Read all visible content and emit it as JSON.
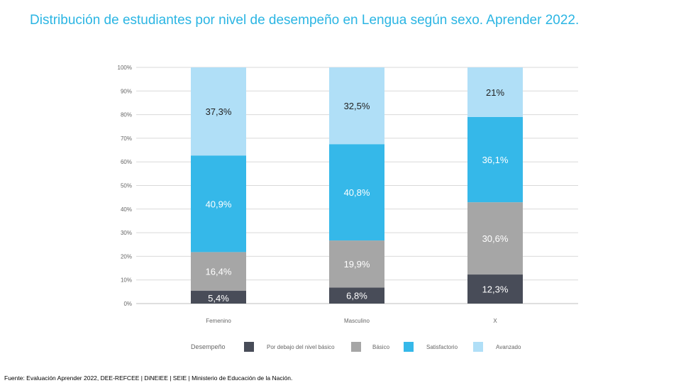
{
  "title": "Distribución de estudiantes por nivel de desempeño en Lengua según sexo. Aprender 2022.",
  "source": "Fuente: Evaluación Aprender 2022, DEE-REFCEE | DiNEIEE | SEIE | Ministerio de Educación de la Nación.",
  "chart_data": {
    "type": "bar",
    "stacked": true,
    "categories": [
      "Femenino",
      "Masculino",
      "X"
    ],
    "series": [
      {
        "name": "Por debajo del nivel básico",
        "color": "#484c58",
        "label_color": "#ffffff",
        "values": [
          5.4,
          6.8,
          12.3
        ],
        "labels": [
          "5,4%",
          "6,8%",
          "12,3%"
        ]
      },
      {
        "name": "Básico",
        "color": "#a6a6a6",
        "label_color": "#ffffff",
        "values": [
          16.4,
          19.9,
          30.6
        ],
        "labels": [
          "16,4%",
          "19,9%",
          "30,6%"
        ]
      },
      {
        "name": "Satisfactorio",
        "color": "#35b8e9",
        "label_color": "#ffffff",
        "values": [
          40.9,
          40.8,
          36.1
        ],
        "labels": [
          "40,9%",
          "40,8%",
          "36,1%"
        ]
      },
      {
        "name": "Avanzado",
        "color": "#b0dff7",
        "label_color": "#222222",
        "values": [
          37.3,
          32.5,
          21.0
        ],
        "labels": [
          "37,3%",
          "32,5%",
          "21%"
        ]
      }
    ],
    "yticks": [
      "0%",
      "10%",
      "20%",
      "30%",
      "40%",
      "50%",
      "60%",
      "70%",
      "80%",
      "90%",
      "100%"
    ],
    "ylim": [
      0,
      100
    ],
    "legend_title": "Desempeño",
    "legend_position": "bottom",
    "grid": true
  }
}
